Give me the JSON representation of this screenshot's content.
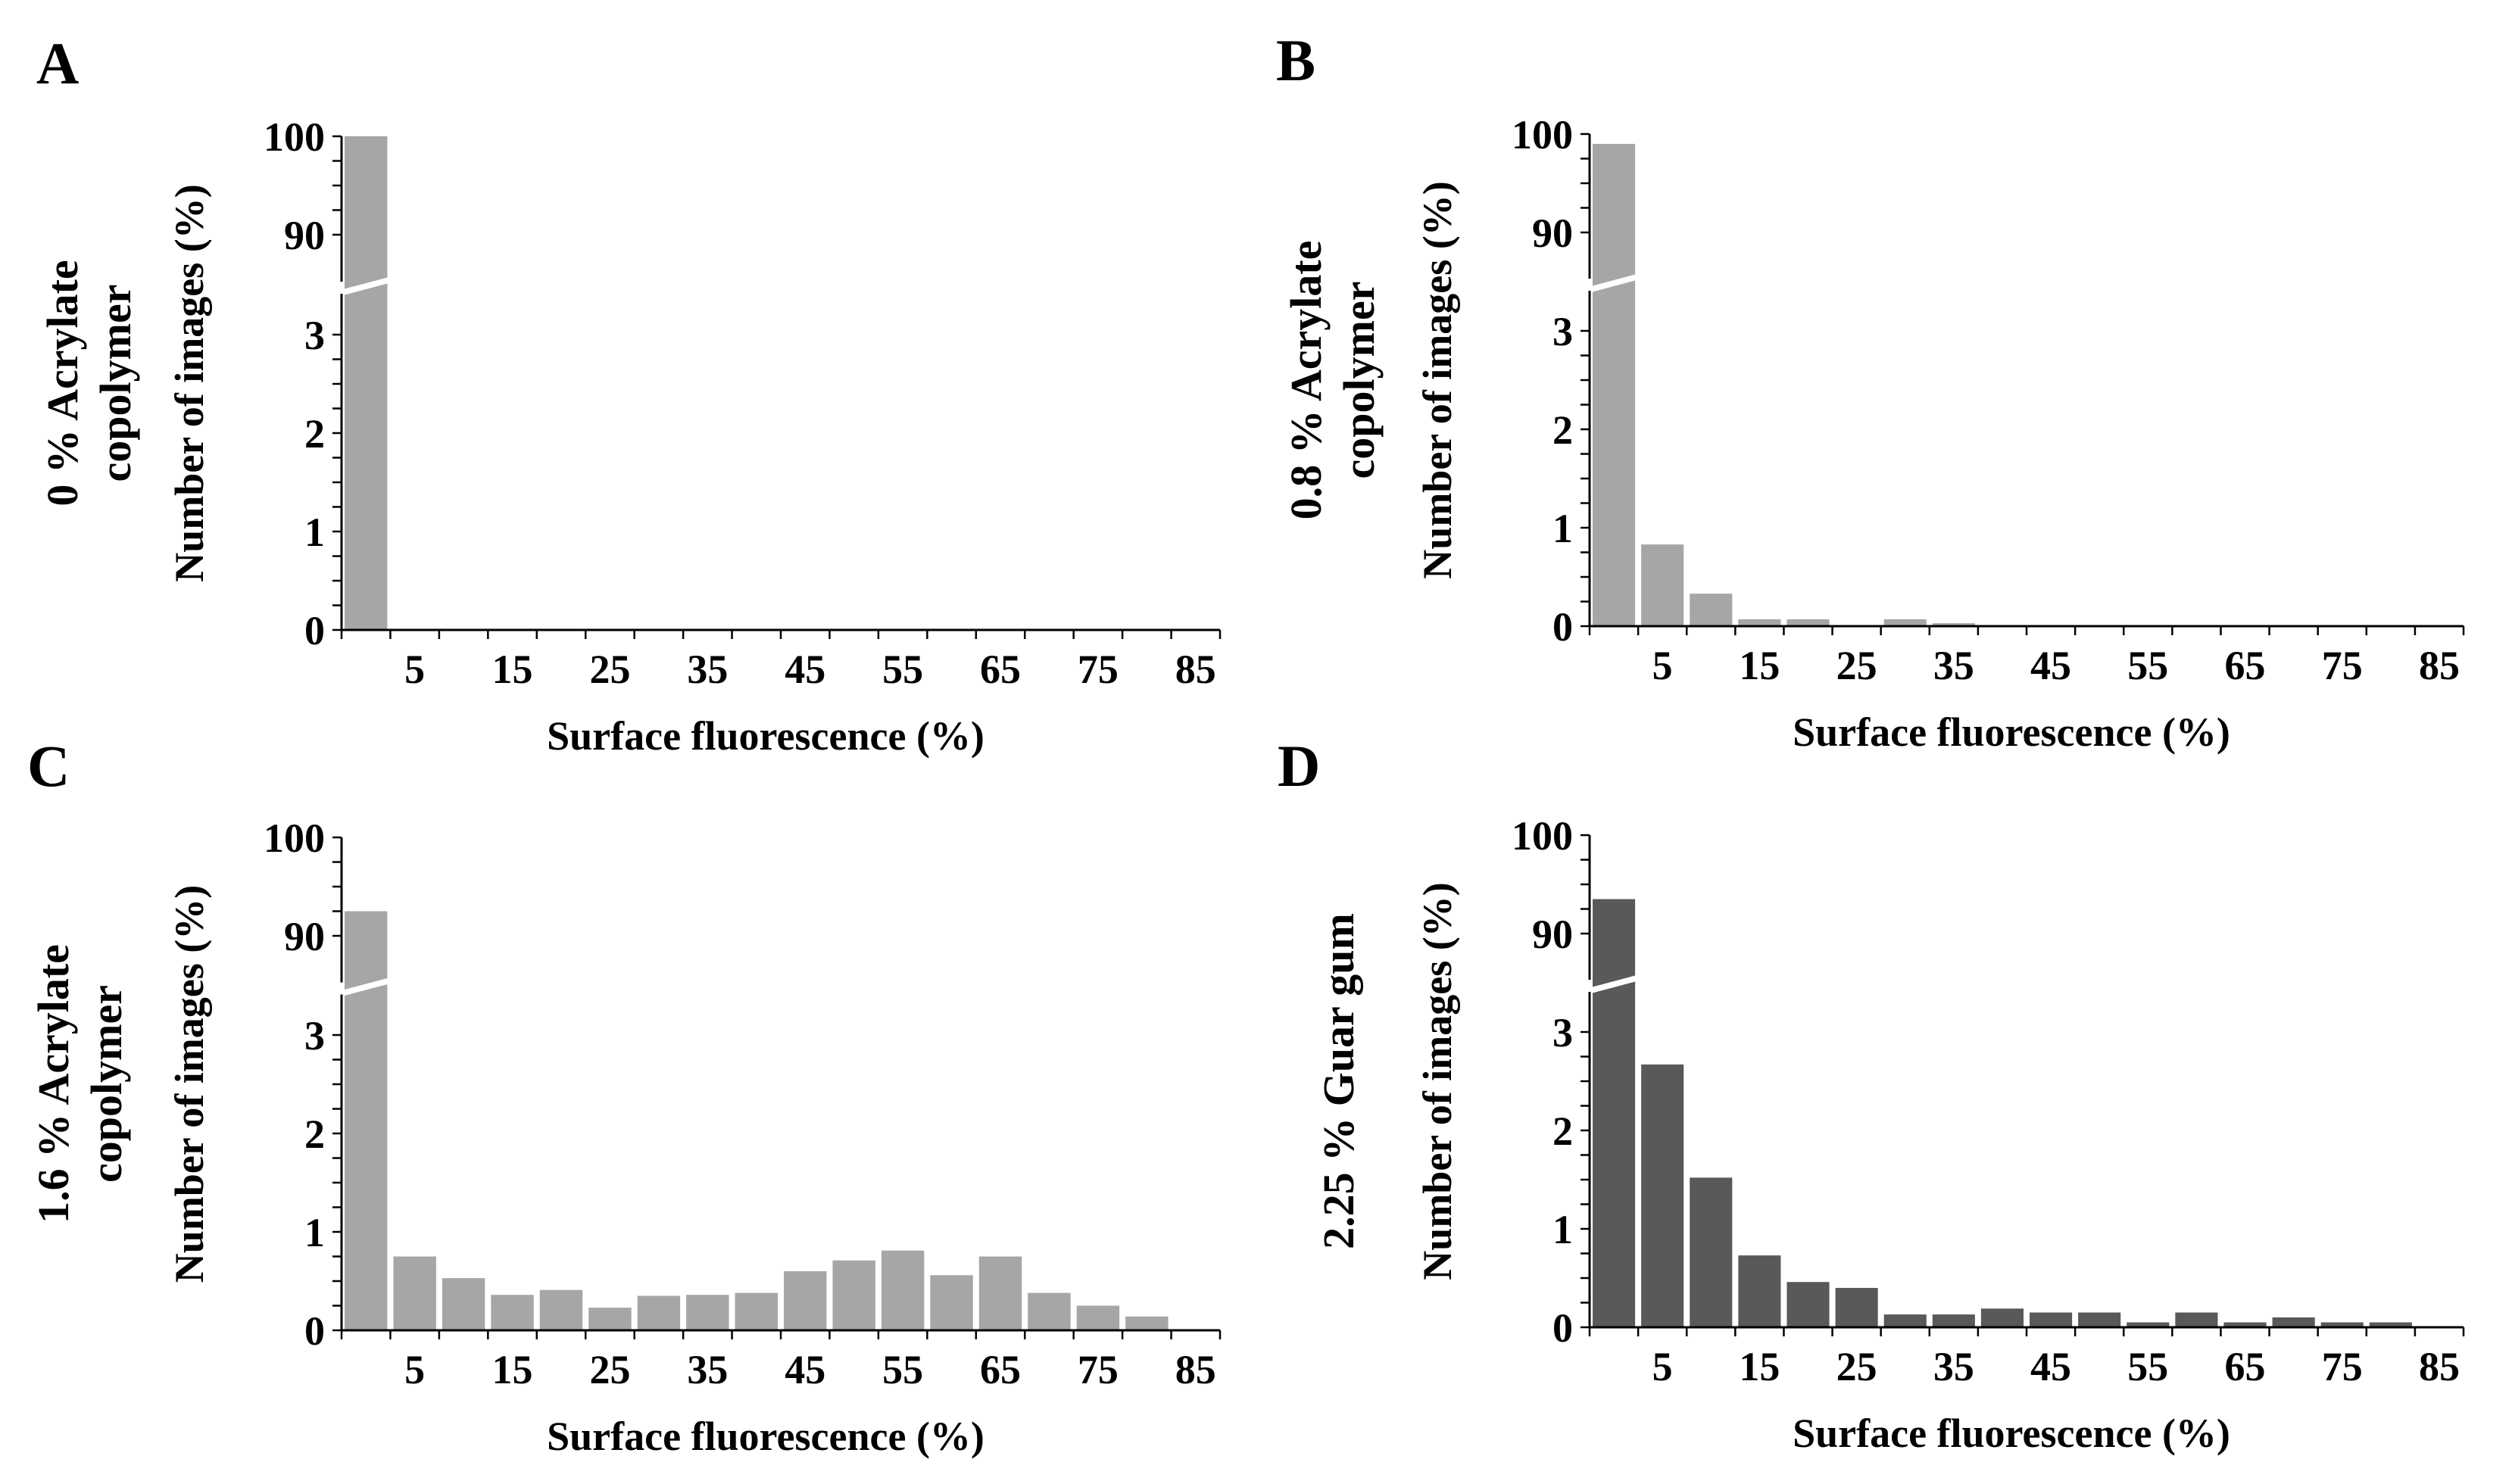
{
  "figure": {
    "x_tick_labels": [
      "5",
      "15",
      "25",
      "35",
      "45",
      "55",
      "65",
      "75",
      "85"
    ],
    "y_tick_labels": [
      "0",
      "1",
      "2",
      "3",
      "90",
      "100"
    ]
  },
  "chart_data": [
    {
      "type": "bar",
      "panel_label": "A",
      "title": "0 % Acrylate copolymer",
      "title_lines": [
        "0 % Acrylate",
        "copolymer"
      ],
      "xlabel": "Surface fluorescence (%)",
      "ylabel": "Number of images (%)",
      "bar_color": "#a6a6a6",
      "bin_width": 5,
      "y_axis_break": {
        "lower_segment": [
          0,
          3
        ],
        "upper_segment": [
          90,
          100
        ]
      },
      "x": [
        2.5,
        7.5,
        12.5,
        17.5,
        22.5,
        27.5,
        32.5,
        37.5,
        42.5,
        47.5,
        52.5,
        57.5,
        62.5,
        67.5,
        72.5,
        77.5,
        82.5
      ],
      "values": [
        100,
        0,
        0,
        0,
        0,
        0,
        0,
        0,
        0,
        0,
        0,
        0,
        0,
        0,
        0,
        0,
        0
      ]
    },
    {
      "type": "bar",
      "panel_label": "B",
      "title": "0.8 % Acrylate copolymer",
      "title_lines": [
        "0.8 % Acrylate",
        "copolymer"
      ],
      "xlabel": "Surface fluorescence (%)",
      "ylabel": "Number of images (%)",
      "bar_color": "#a6a6a6",
      "bin_width": 5,
      "y_axis_break": {
        "lower_segment": [
          0,
          3
        ],
        "upper_segment": [
          90,
          100
        ]
      },
      "x": [
        2.5,
        7.5,
        12.5,
        17.5,
        22.5,
        27.5,
        32.5,
        37.5,
        42.5,
        47.5,
        52.5,
        57.5,
        62.5,
        67.5,
        72.5,
        77.5,
        82.5
      ],
      "values": [
        99,
        0.83,
        0.33,
        0.07,
        0.07,
        0,
        0.07,
        0.03,
        0,
        0,
        0,
        0,
        0,
        0,
        0,
        0,
        0
      ]
    },
    {
      "type": "bar",
      "panel_label": "C",
      "title": "1.6 % Acrylate copolymer",
      "title_lines": [
        "1.6 % Acrylate",
        "copolymer"
      ],
      "xlabel": "Surface fluorescence (%)",
      "ylabel": "Number of images (%)",
      "bar_color": "#a6a6a6",
      "bin_width": 5,
      "y_axis_break": {
        "lower_segment": [
          0,
          3
        ],
        "upper_segment": [
          90,
          100
        ]
      },
      "x": [
        2.5,
        7.5,
        12.5,
        17.5,
        22.5,
        27.5,
        32.5,
        37.5,
        42.5,
        47.5,
        52.5,
        57.5,
        62.5,
        67.5,
        72.5,
        77.5,
        82.5
      ],
      "values": [
        92.5,
        0.75,
        0.53,
        0.36,
        0.41,
        0.23,
        0.35,
        0.36,
        0.38,
        0.6,
        0.71,
        0.81,
        0.56,
        0.75,
        0.38,
        0.25,
        0.14
      ]
    },
    {
      "type": "bar",
      "panel_label": "D",
      "title": "2.25 % Guar gum",
      "title_lines": [
        "2.25 % Guar gum"
      ],
      "xlabel": "Surface fluorescence (%)",
      "ylabel": "Number of images (%)",
      "bar_color": "#595959",
      "bin_width": 5,
      "y_axis_break": {
        "lower_segment": [
          0,
          3
        ],
        "upper_segment": [
          90,
          100
        ]
      },
      "x": [
        2.5,
        7.5,
        12.5,
        17.5,
        22.5,
        27.5,
        32.5,
        37.5,
        42.5,
        47.5,
        52.5,
        57.5,
        62.5,
        67.5,
        72.5,
        77.5,
        82.5
      ],
      "values": [
        93.5,
        2.67,
        1.52,
        0.73,
        0.46,
        0.4,
        0.13,
        0.13,
        0.19,
        0.15,
        0.15,
        0.05,
        0.15,
        0.05,
        0.1,
        0.05,
        0.05
      ]
    }
  ]
}
